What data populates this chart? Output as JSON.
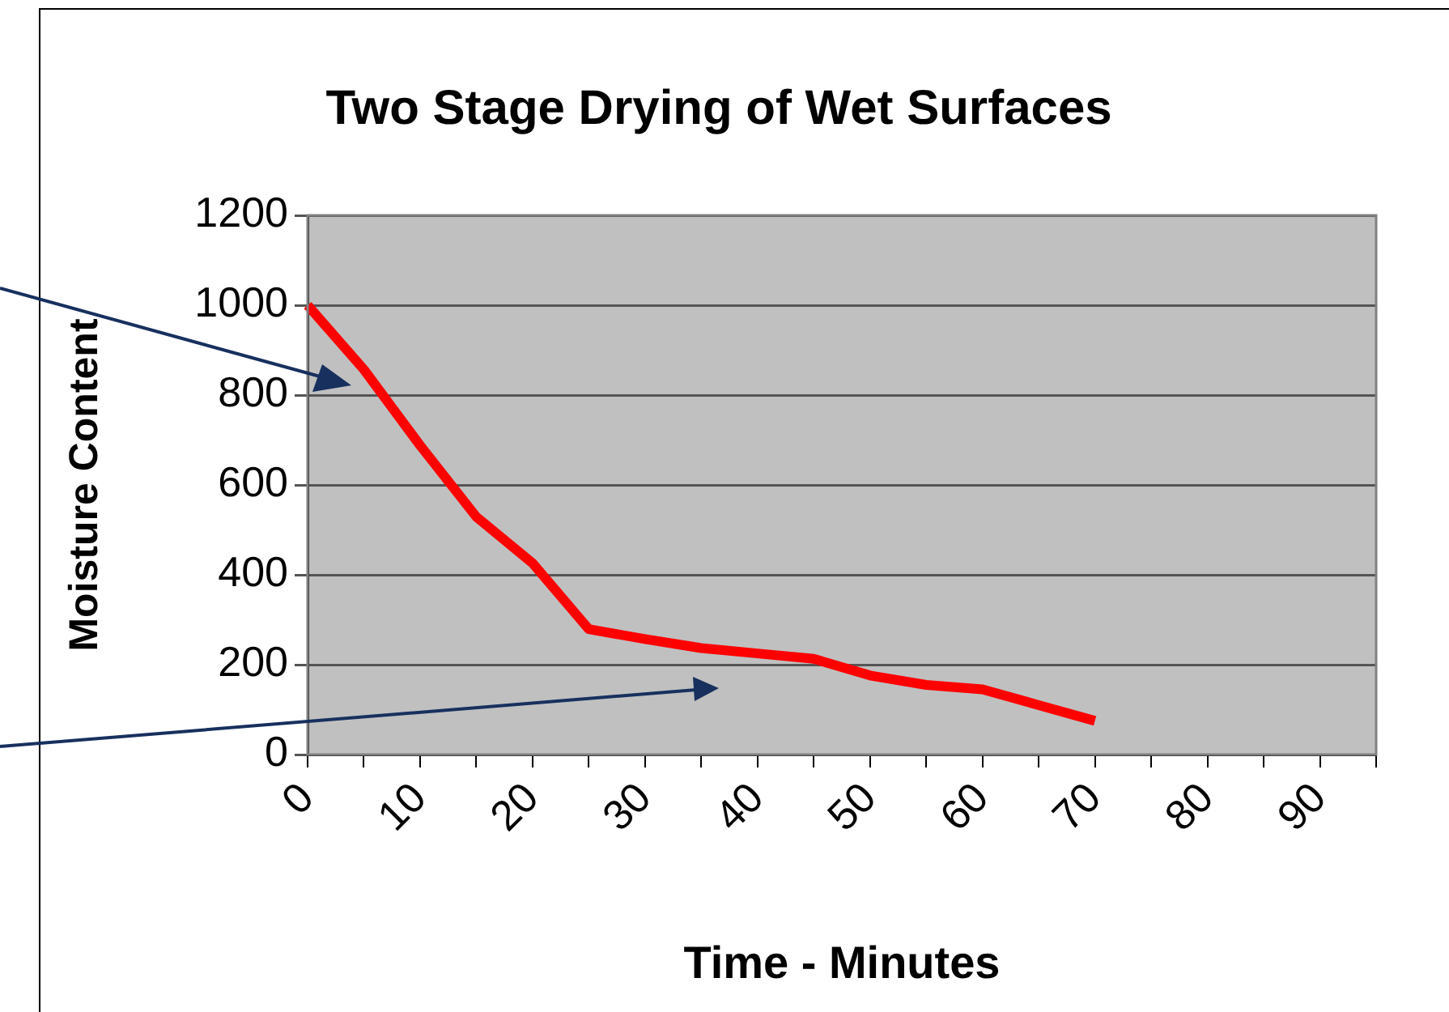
{
  "chart_data": {
    "type": "line",
    "title": "Two Stage Drying of Wet Surfaces",
    "xlabel": "Time - Minutes",
    "ylabel": "Moisture Content",
    "categories": [
      "0",
      null,
      "10",
      null,
      "20",
      null,
      "30",
      null,
      "40",
      null,
      "50",
      null,
      "60",
      null,
      "70",
      null,
      "80",
      null,
      "90",
      null
    ],
    "series": [
      {
        "color": "#ff0000",
        "values": [
          1000,
          857,
          688,
          529,
          426,
          279,
          257,
          237,
          225,
          213,
          176,
          155,
          145,
          110,
          75,
          null,
          null,
          null,
          null,
          null
        ]
      }
    ],
    "ylim": [
      0,
      1200
    ],
    "yticks": [
      0,
      200,
      400,
      600,
      800,
      1000,
      1200
    ],
    "grid": "y",
    "legend": false,
    "marker": "none",
    "line_style": "solid"
  }
}
